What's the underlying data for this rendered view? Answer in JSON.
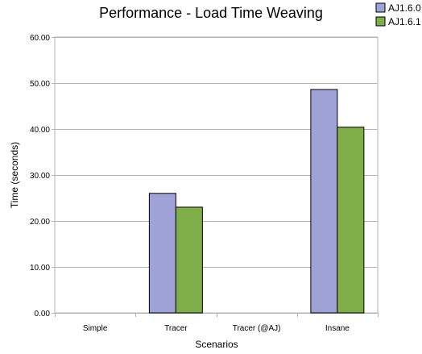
{
  "chart_data": {
    "type": "bar",
    "title": "Performance - Load Time Weaving",
    "xlabel": "Scenarios",
    "ylabel": "Time (seconds)",
    "categories": [
      "Simple",
      "Tracer",
      "Tracer (@AJ)",
      "Insane"
    ],
    "series": [
      {
        "name": "AJ1.6.0",
        "color": "#9fa2d6",
        "values": [
          0,
          26.0,
          0,
          48.6
        ]
      },
      {
        "name": "AJ1.6.1",
        "color": "#7fad48",
        "values": [
          0,
          23.0,
          0,
          40.4
        ]
      }
    ],
    "yticks": [
      "0.00",
      "10.00",
      "20.00",
      "30.00",
      "40.00",
      "50.00",
      "60.00"
    ],
    "ylim": [
      0,
      60
    ],
    "grid": true,
    "legend_position": "top-right"
  }
}
